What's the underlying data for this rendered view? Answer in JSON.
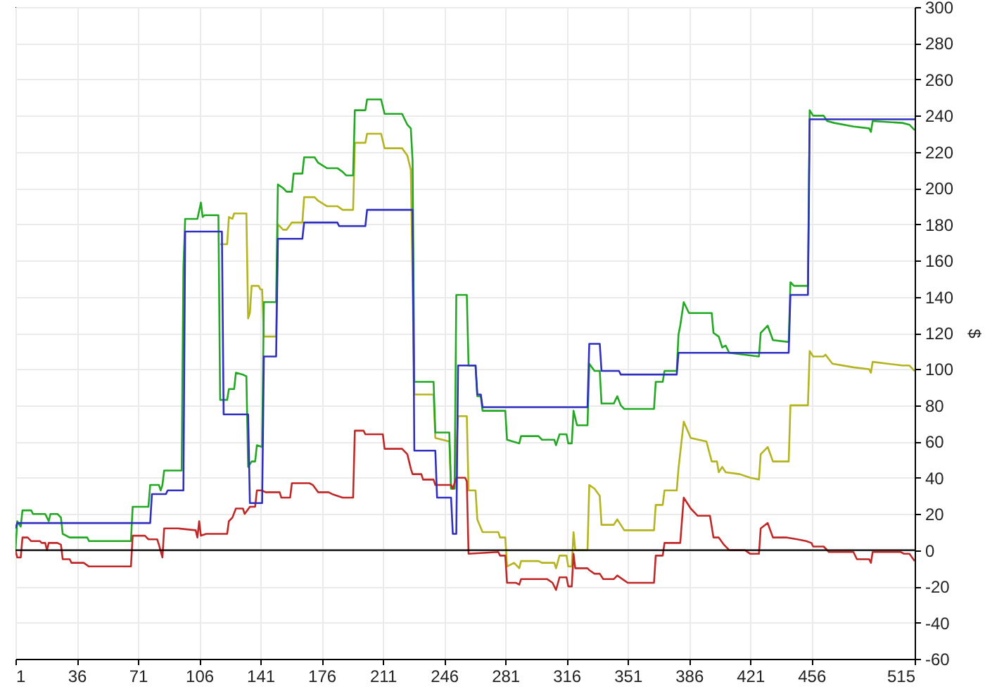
{
  "chart_data": {
    "type": "line",
    "ylabel": "$",
    "xlim": [
      1,
      515
    ],
    "xticks": [
      1,
      36,
      71,
      106,
      141,
      176,
      211,
      246,
      281,
      316,
      351,
      386,
      421,
      456,
      515
    ],
    "ylim": [
      -60,
      300
    ],
    "yticks": [
      -60,
      -40,
      -20,
      0,
      20,
      40,
      60,
      80,
      100,
      120,
      140,
      160,
      180,
      200,
      220,
      240,
      260,
      280,
      300
    ],
    "grid": true,
    "ref_lines": [
      {
        "axis": "y",
        "value": 0,
        "color": "#000000"
      }
    ],
    "series": [
      {
        "color": "#b4b41e",
        "x": [
          118,
          122,
          123,
          125,
          126,
          131,
          133,
          134,
          135,
          136,
          140,
          141,
          142,
          143,
          150,
          151,
          154,
          156,
          159,
          165,
          166,
          172,
          174,
          179,
          185,
          188,
          194,
          195,
          201,
          202,
          210,
          212,
          222,
          225,
          227,
          229,
          240,
          241,
          249,
          250,
          252,
          254,
          259,
          260,
          264,
          265,
          268,
          277,
          278,
          281,
          282,
          286,
          289,
          290,
          300,
          302,
          309,
          310,
          312,
          316,
          317,
          319,
          320,
          321,
          328,
          329,
          332,
          335,
          336,
          343,
          345,
          347,
          349,
          366,
          367,
          371,
          372,
          379,
          380,
          383,
          387,
          396,
          399,
          402,
          403,
          405,
          407,
          415,
          421,
          426,
          427,
          431,
          434,
          443,
          444,
          454,
          455,
          457,
          463,
          464,
          468,
          480,
          489,
          490,
          491,
          508,
          512,
          515
        ],
        "values": [
          169,
          169,
          184,
          183,
          186,
          186,
          186,
          128,
          131,
          146,
          146,
          144,
          144,
          118,
          118,
          180,
          177,
          177,
          181,
          181,
          195,
          195,
          193,
          190,
          190,
          188,
          188,
          225,
          225,
          230,
          230,
          222,
          222,
          218,
          210,
          86,
          86,
          62,
          60,
          34,
          34,
          74,
          74,
          33,
          33,
          17,
          10,
          10,
          7,
          7,
          -9,
          -7,
          -10,
          -6,
          -6,
          -7,
          -7,
          -10,
          -3,
          -3,
          -9,
          -9,
          10,
          0,
          0,
          36,
          34,
          30,
          14,
          14,
          17,
          14,
          11,
          11,
          25,
          25,
          33,
          33,
          45,
          71,
          62,
          60,
          49,
          49,
          43,
          46,
          43,
          42,
          40,
          39,
          53,
          57,
          49,
          49,
          80,
          80,
          110,
          107,
          107,
          108,
          103,
          101,
          100,
          98,
          104,
          102,
          102,
          99
        ]
      },
      {
        "color": "#22a822",
        "x": [
          1,
          2,
          4,
          5,
          10,
          11,
          18,
          19,
          20,
          21,
          25,
          27,
          28,
          32,
          42,
          43,
          67,
          68,
          77,
          78,
          83,
          84,
          85,
          86,
          96,
          97,
          98,
          105,
          107,
          108,
          109,
          117,
          118,
          122,
          123,
          126,
          127,
          131,
          133,
          134,
          136,
          138,
          139,
          142,
          143,
          150,
          151,
          154,
          156,
          159,
          160,
          165,
          166,
          172,
          174,
          179,
          185,
          188,
          190,
          194,
          195,
          201,
          202,
          210,
          212,
          222,
          225,
          227,
          228,
          229,
          240,
          241,
          249,
          250,
          252,
          253,
          259,
          260,
          264,
          265,
          267,
          268,
          281,
          282,
          289,
          290,
          300,
          302,
          309,
          310,
          312,
          316,
          317,
          319,
          320,
          322,
          328,
          329,
          332,
          335,
          336,
          343,
          345,
          347,
          349,
          366,
          367,
          371,
          372,
          379,
          380,
          381,
          383,
          386,
          399,
          400,
          403,
          405,
          407,
          409,
          426,
          427,
          431,
          434,
          443,
          444,
          446,
          454,
          455,
          457,
          463,
          465,
          469,
          480,
          489,
          490,
          491,
          508,
          512,
          515
        ],
        "values": [
          0,
          16,
          13,
          22,
          22,
          20,
          20,
          18,
          16,
          20,
          20,
          18,
          9,
          7,
          7,
          5,
          5,
          24,
          24,
          36,
          36,
          33,
          36,
          44,
          44,
          156,
          183,
          183,
          192,
          184,
          185,
          185,
          83,
          83,
          89,
          89,
          98,
          97,
          96,
          46,
          49,
          49,
          58,
          57,
          137,
          137,
          202,
          200,
          198,
          198,
          208,
          208,
          217,
          217,
          214,
          211,
          211,
          209,
          207,
          207,
          243,
          243,
          249,
          249,
          241,
          241,
          235,
          233,
          215,
          93,
          93,
          65,
          65,
          34,
          34,
          141,
          141,
          102,
          102,
          85,
          85,
          77,
          77,
          61,
          59,
          63,
          63,
          61,
          61,
          58,
          64,
          64,
          59,
          59,
          77,
          69,
          69,
          103,
          99,
          99,
          81,
          81,
          85,
          80,
          78,
          78,
          93,
          93,
          99,
          99,
          119,
          124,
          137,
          131,
          131,
          120,
          118,
          112,
          113,
          109,
          107,
          120,
          124,
          116,
          115,
          148,
          146,
          146,
          243,
          240,
          240,
          237,
          236,
          234,
          233,
          231,
          237,
          236,
          235,
          232
        ]
      },
      {
        "color": "#c02828",
        "x": [
          1,
          2,
          4,
          5,
          8,
          10,
          15,
          16,
          18,
          19,
          20,
          25,
          27,
          28,
          32,
          33,
          40,
          43,
          67,
          68,
          75,
          77,
          82,
          83,
          85,
          86,
          94,
          104,
          105,
          106,
          107,
          110,
          122,
          123,
          125,
          127,
          131,
          132,
          135,
          138,
          139,
          142,
          144,
          152,
          153,
          158,
          159,
          169,
          171,
          174,
          180,
          182,
          185,
          188,
          194,
          195,
          200,
          201,
          211,
          212,
          222,
          225,
          227,
          228,
          233,
          234,
          240,
          241,
          250,
          251,
          253,
          258,
          259,
          260,
          277,
          278,
          281,
          282,
          287,
          289,
          290,
          305,
          308,
          310,
          312,
          316,
          317,
          319,
          320,
          321,
          328,
          329,
          332,
          335,
          337,
          343,
          345,
          348,
          351,
          366,
          367,
          371,
          372,
          381,
          383,
          387,
          391,
          398,
          400,
          403,
          406,
          409,
          418,
          421,
          426,
          427,
          431,
          434,
          442,
          448,
          453,
          456,
          457,
          463,
          466,
          480,
          482,
          489,
          490,
          491,
          507,
          509,
          512,
          515
        ],
        "values": [
          0,
          -4,
          -4,
          7,
          7,
          5,
          5,
          4,
          4,
          0,
          4,
          4,
          3,
          -5,
          -5,
          -7,
          -7,
          -9,
          -9,
          8,
          8,
          6,
          6,
          3,
          -4,
          12,
          12,
          11,
          7,
          16,
          8,
          9,
          9,
          16,
          18,
          23,
          23,
          20,
          24,
          24,
          33,
          33,
          32,
          32,
          29,
          29,
          37,
          37,
          36,
          32,
          32,
          31,
          30,
          29,
          29,
          66,
          66,
          64,
          64,
          56,
          56,
          53,
          45,
          42,
          42,
          39,
          39,
          36,
          36,
          34,
          40,
          40,
          38,
          -2,
          -1,
          -3,
          -3,
          -18,
          -18,
          -19,
          -16,
          -16,
          -18,
          -22,
          -15,
          -15,
          -20,
          -20,
          -2,
          -10,
          -10,
          -11,
          -13,
          -13,
          -16,
          -16,
          -14,
          -16,
          -18,
          -18,
          -3,
          -3,
          4,
          4,
          29,
          23,
          19,
          19,
          7,
          7,
          3,
          0,
          0,
          -2,
          -2,
          12,
          15,
          7,
          7,
          6,
          5,
          4,
          2,
          2,
          -1,
          -1,
          -5,
          -5,
          -7,
          -1,
          -1,
          -2,
          -2,
          -6
        ]
      },
      {
        "color": "#3030c0",
        "x": [
          1,
          2,
          78,
          79,
          87,
          88,
          97,
          98,
          119,
          120,
          134,
          135,
          142,
          143,
          150,
          151,
          165,
          166,
          185,
          186,
          201,
          202,
          228,
          229,
          241,
          242,
          250,
          251,
          253,
          254,
          264,
          265,
          267,
          268,
          328,
          329,
          335,
          336,
          346,
          347,
          379,
          380,
          443,
          444,
          454,
          455,
          515
        ],
        "values": [
          12,
          15,
          15,
          31,
          31,
          33,
          33,
          176,
          176,
          75,
          75,
          26,
          26,
          107,
          107,
          172,
          172,
          181,
          181,
          179,
          179,
          188,
          188,
          55,
          55,
          29,
          29,
          9,
          9,
          102,
          102,
          86,
          86,
          79,
          79,
          114,
          114,
          99,
          99,
          97,
          97,
          109,
          109,
          141,
          141,
          238,
          238
        ]
      }
    ]
  }
}
